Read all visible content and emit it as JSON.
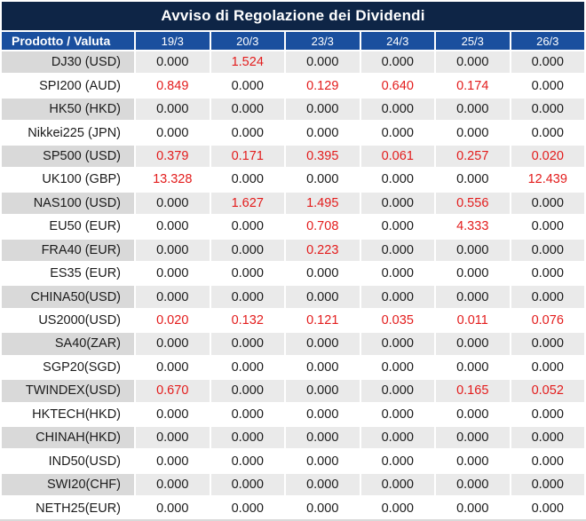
{
  "title": "Avviso di Regolazione dei Dividendi",
  "chart_data": {
    "type": "table",
    "title": "Avviso di Regolazione dei Dividendi",
    "columns": [
      "Prodotto / Valuta",
      "19/3",
      "20/3",
      "23/3",
      "24/3",
      "25/3",
      "26/3"
    ],
    "rows": [
      {
        "product": "DJ30 (USD)",
        "values": [
          "0.000",
          "1.524",
          "0.000",
          "0.000",
          "0.000",
          "0.000"
        ],
        "red": [
          false,
          true,
          false,
          false,
          false,
          false
        ]
      },
      {
        "product": "SPI200 (AUD)",
        "values": [
          "0.849",
          "0.000",
          "0.129",
          "0.640",
          "0.174",
          "0.000"
        ],
        "red": [
          true,
          false,
          true,
          true,
          true,
          false
        ]
      },
      {
        "product": "HK50 (HKD)",
        "values": [
          "0.000",
          "0.000",
          "0.000",
          "0.000",
          "0.000",
          "0.000"
        ],
        "red": [
          false,
          false,
          false,
          false,
          false,
          false
        ]
      },
      {
        "product": "Nikkei225 (JPN)",
        "values": [
          "0.000",
          "0.000",
          "0.000",
          "0.000",
          "0.000",
          "0.000"
        ],
        "red": [
          false,
          false,
          false,
          false,
          false,
          false
        ]
      },
      {
        "product": "SP500 (USD)",
        "values": [
          "0.379",
          "0.171",
          "0.395",
          "0.061",
          "0.257",
          "0.020"
        ],
        "red": [
          true,
          true,
          true,
          true,
          true,
          true
        ]
      },
      {
        "product": "UK100 (GBP)",
        "values": [
          "13.328",
          "0.000",
          "0.000",
          "0.000",
          "0.000",
          "12.439"
        ],
        "red": [
          true,
          false,
          false,
          false,
          false,
          true
        ]
      },
      {
        "product": "NAS100 (USD)",
        "values": [
          "0.000",
          "1.627",
          "1.495",
          "0.000",
          "0.556",
          "0.000"
        ],
        "red": [
          false,
          true,
          true,
          false,
          true,
          false
        ]
      },
      {
        "product": "EU50 (EUR)",
        "values": [
          "0.000",
          "0.000",
          "0.708",
          "0.000",
          "4.333",
          "0.000"
        ],
        "red": [
          false,
          false,
          true,
          false,
          true,
          false
        ]
      },
      {
        "product": "FRA40 (EUR)",
        "values": [
          "0.000",
          "0.000",
          "0.223",
          "0.000",
          "0.000",
          "0.000"
        ],
        "red": [
          false,
          false,
          true,
          false,
          false,
          false
        ]
      },
      {
        "product": "ES35 (EUR)",
        "values": [
          "0.000",
          "0.000",
          "0.000",
          "0.000",
          "0.000",
          "0.000"
        ],
        "red": [
          false,
          false,
          false,
          false,
          false,
          false
        ]
      },
      {
        "product": "CHINA50(USD)",
        "values": [
          "0.000",
          "0.000",
          "0.000",
          "0.000",
          "0.000",
          "0.000"
        ],
        "red": [
          false,
          false,
          false,
          false,
          false,
          false
        ]
      },
      {
        "product": "US2000(USD)",
        "values": [
          "0.020",
          "0.132",
          "0.121",
          "0.035",
          "0.011",
          "0.076"
        ],
        "red": [
          true,
          true,
          true,
          true,
          true,
          true
        ]
      },
      {
        "product": "SA40(ZAR)",
        "values": [
          "0.000",
          "0.000",
          "0.000",
          "0.000",
          "0.000",
          "0.000"
        ],
        "red": [
          false,
          false,
          false,
          false,
          false,
          false
        ]
      },
      {
        "product": "SGP20(SGD)",
        "values": [
          "0.000",
          "0.000",
          "0.000",
          "0.000",
          "0.000",
          "0.000"
        ],
        "red": [
          false,
          false,
          false,
          false,
          false,
          false
        ]
      },
      {
        "product": "TWINDEX(USD)",
        "values": [
          "0.670",
          "0.000",
          "0.000",
          "0.000",
          "0.165",
          "0.052"
        ],
        "red": [
          true,
          false,
          false,
          false,
          true,
          true
        ]
      },
      {
        "product": "HKTECH(HKD)",
        "values": [
          "0.000",
          "0.000",
          "0.000",
          "0.000",
          "0.000",
          "0.000"
        ],
        "red": [
          false,
          false,
          false,
          false,
          false,
          false
        ]
      },
      {
        "product": "CHINAH(HKD)",
        "values": [
          "0.000",
          "0.000",
          "0.000",
          "0.000",
          "0.000",
          "0.000"
        ],
        "red": [
          false,
          false,
          false,
          false,
          false,
          false
        ]
      },
      {
        "product": "IND50(USD)",
        "values": [
          "0.000",
          "0.000",
          "0.000",
          "0.000",
          "0.000",
          "0.000"
        ],
        "red": [
          false,
          false,
          false,
          false,
          false,
          false
        ]
      },
      {
        "product": "SWI20(CHF)",
        "values": [
          "0.000",
          "0.000",
          "0.000",
          "0.000",
          "0.000",
          "0.000"
        ],
        "red": [
          false,
          false,
          false,
          false,
          false,
          false
        ]
      },
      {
        "product": "NETH25(EUR)",
        "values": [
          "0.000",
          "0.000",
          "0.000",
          "0.000",
          "0.000",
          "0.000"
        ],
        "red": [
          false,
          false,
          false,
          false,
          false,
          false
        ]
      }
    ],
    "layout": {
      "zero_value_color": "black",
      "nonzero_value_color": "red",
      "alternating_row_shading": true
    }
  },
  "colors": {
    "title_bg": "#0e2546",
    "header_bg": "#1a4f9e",
    "row_label_gray": "#d9d9d9",
    "row_data_gray": "#eaeaea",
    "value_red": "#e31c1c",
    "text_dark": "#1b1b1b"
  }
}
